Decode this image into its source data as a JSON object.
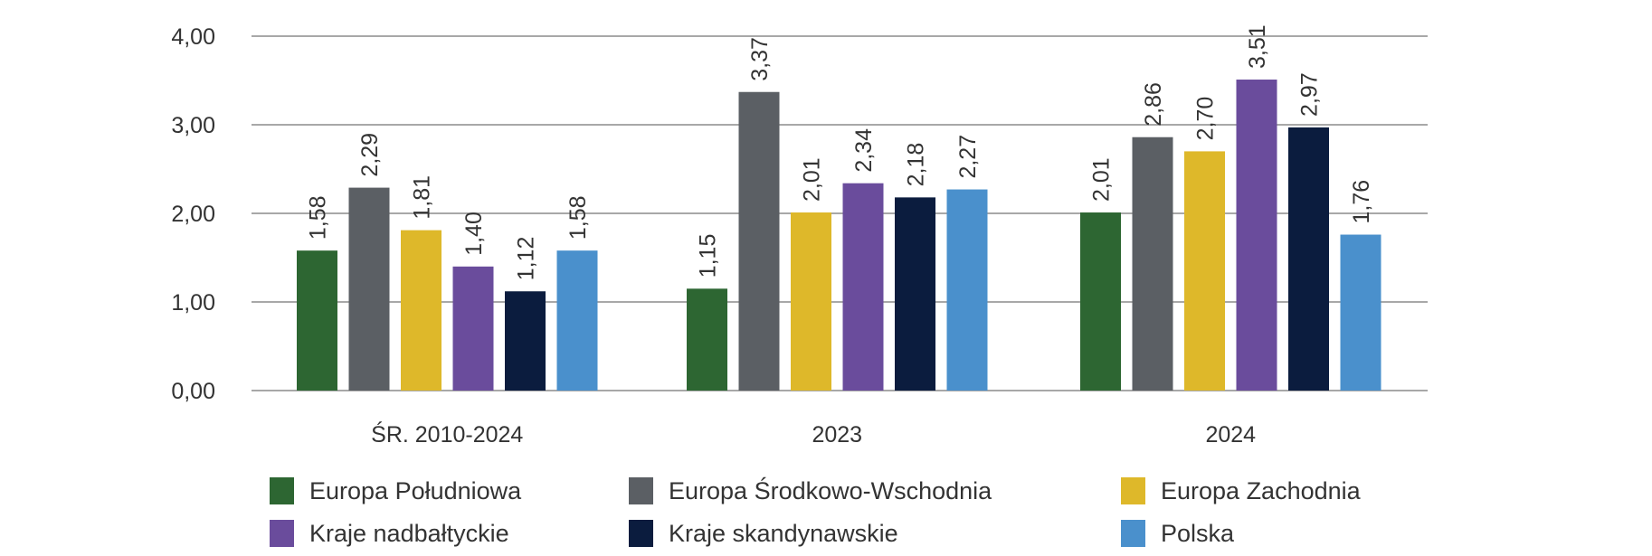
{
  "chart_data": {
    "type": "bar",
    "categories": [
      "ŚR. 2010-2024",
      "2023",
      "2024"
    ],
    "series": [
      {
        "name": "Europa Południowa",
        "color": "#2d6632",
        "values": [
          1.58,
          1.15,
          2.01
        ],
        "labels": [
          "1,58",
          "1,15",
          "2,01"
        ]
      },
      {
        "name": "Europa Środkowo-Wschodnia",
        "color": "#5b5f64",
        "values": [
          2.29,
          3.37,
          2.86
        ],
        "labels": [
          "2,29",
          "3,37",
          "2,86"
        ]
      },
      {
        "name": "Europa Zachodnia",
        "color": "#deb82a",
        "values": [
          1.81,
          2.01,
          2.7
        ],
        "labels": [
          "1,81",
          "2,01",
          "2,70"
        ]
      },
      {
        "name": "Kraje nadbałtyckie",
        "color": "#6a4c9c",
        "values": [
          1.4,
          2.34,
          3.51
        ],
        "labels": [
          "1,40",
          "2,34",
          "3,51"
        ]
      },
      {
        "name": "Kraje skandynawskie",
        "color": "#0b1c3e",
        "values": [
          1.12,
          2.18,
          2.97
        ],
        "labels": [
          "1,12",
          "2,18",
          "2,97"
        ]
      },
      {
        "name": "Polska",
        "color": "#4a90cc",
        "values": [
          1.58,
          2.27,
          1.76
        ],
        "labels": [
          "1,58",
          "2,27",
          "1,76"
        ]
      }
    ],
    "yticks": [
      0,
      1,
      2,
      3,
      4
    ],
    "ytick_labels": [
      "0,00",
      "1,00",
      "2,00",
      "3,00",
      "4,00"
    ],
    "ylim": [
      0,
      4
    ],
    "grid": true,
    "legend": "bottom",
    "title": "",
    "xlabel": "",
    "ylabel": ""
  }
}
